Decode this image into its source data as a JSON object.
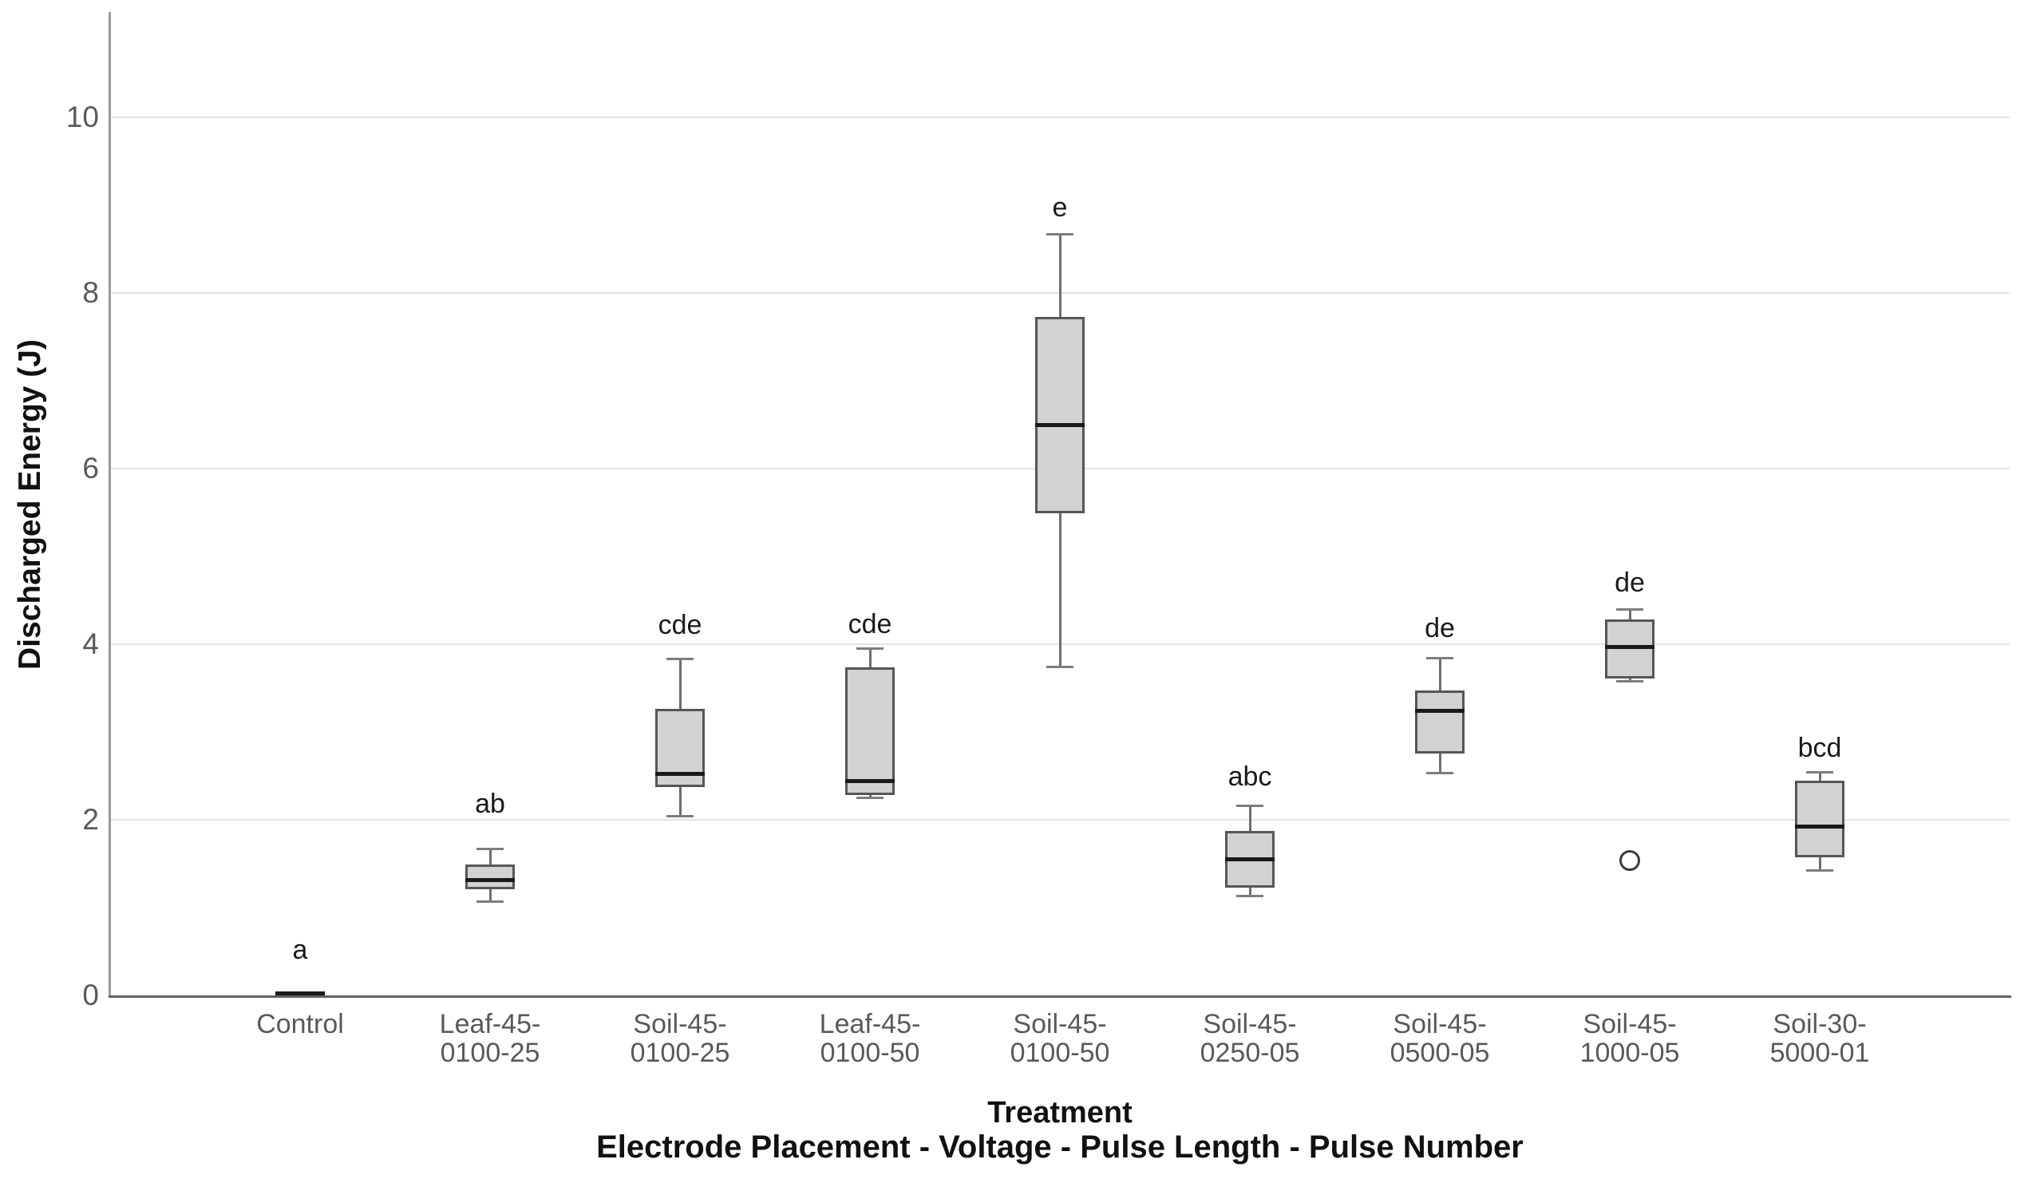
{
  "figure": {
    "ylabel": "Discharged Energy (J)",
    "xlabel_primary": "Treatment",
    "xlabel_secondary": "Electrode Placement - Voltage - Pulse Length - Pulse Number"
  },
  "chart_data": {
    "type": "box",
    "title": "",
    "ylabel": "Discharged Energy (J)",
    "xlabel": "Treatment: Electrode Placement - Voltage - Pulse Length - Pulse Number",
    "ylim": [
      0,
      11.2
    ],
    "yticks": [
      0,
      2,
      4,
      6,
      8,
      10
    ],
    "grid": "horizontal",
    "legend": "none",
    "categories": [
      "Control",
      "Leaf-45-0100-25",
      "Soil-45-0100-25",
      "Leaf-45-0100-50",
      "Soil-45-0100-50",
      "Soil-45-0250-05",
      "Soil-45-0500-05",
      "Soil-45-1000-05",
      "Soil-30-5000-01"
    ],
    "category_label_lines": [
      [
        "Control"
      ],
      [
        "Leaf-45-",
        "0100-25"
      ],
      [
        "Soil-45-",
        "0100-25"
      ],
      [
        "Leaf-45-",
        "0100-50"
      ],
      [
        "Soil-45-",
        "0100-50"
      ],
      [
        "Soil-45-",
        "0250-05"
      ],
      [
        "Soil-45-",
        "0500-05"
      ],
      [
        "Soil-45-",
        "1000-05"
      ],
      [
        "Soil-30-",
        "5000-01"
      ]
    ],
    "boxes": [
      {
        "category": "Control",
        "min": 0.02,
        "q1": 0.02,
        "median": 0.02,
        "q3": 0.02,
        "max": 0.02,
        "outliers": [],
        "sig_letter": "a",
        "sig_letter_y": 0.52
      },
      {
        "category": "Leaf-45-0100-25",
        "min": 1.07,
        "q1": 1.21,
        "median": 1.31,
        "q3": 1.49,
        "max": 1.67,
        "outliers": [],
        "sig_letter": "ab",
        "sig_letter_y": 2.18
      },
      {
        "category": "Soil-45-0100-25",
        "min": 2.04,
        "q1": 2.37,
        "median": 2.52,
        "q3": 3.26,
        "max": 3.83,
        "outliers": [],
        "sig_letter": "cde",
        "sig_letter_y": 4.22
      },
      {
        "category": "Leaf-45-0100-50",
        "min": 2.25,
        "q1": 2.28,
        "median": 2.44,
        "q3": 3.74,
        "max": 3.95,
        "outliers": [],
        "sig_letter": "cde",
        "sig_letter_y": 4.23
      },
      {
        "category": "Soil-45-0100-50",
        "min": 3.74,
        "q1": 5.49,
        "median": 6.5,
        "q3": 7.73,
        "max": 8.67,
        "outliers": [],
        "sig_letter": "e",
        "sig_letter_y": 8.97
      },
      {
        "category": "Soil-45-0250-05",
        "min": 1.13,
        "q1": 1.23,
        "median": 1.55,
        "q3": 1.87,
        "max": 2.16,
        "outliers": [],
        "sig_letter": "abc",
        "sig_letter_y": 2.49
      },
      {
        "category": "Soil-45-0500-05",
        "min": 2.53,
        "q1": 2.75,
        "median": 3.24,
        "q3": 3.47,
        "max": 3.84,
        "outliers": [],
        "sig_letter": "de",
        "sig_letter_y": 4.18
      },
      {
        "category": "Soil-45-1000-05",
        "min": 3.58,
        "q1": 3.61,
        "median": 3.97,
        "q3": 4.28,
        "max": 4.4,
        "outliers": [
          1.54
        ],
        "sig_letter": "de",
        "sig_letter_y": 4.7
      },
      {
        "category": "Soil-30-5000-01",
        "min": 1.42,
        "q1": 1.57,
        "median": 1.92,
        "q3": 2.45,
        "max": 2.54,
        "outliers": [],
        "sig_letter": "bcd",
        "sig_letter_y": 2.82
      }
    ]
  },
  "style": {
    "box_fill": "#d2d2d2",
    "box_border": "#565656",
    "median_color": "#1a1a1a",
    "whisker_color": "#6e6e6e",
    "cap_color": "#7d7d7d",
    "grid_color": "#e4e4e4",
    "y_axis_color": "#9a9a9a",
    "x_axis_color": "#616161",
    "tick_label_color": "#595959",
    "sig_letter_color": "#1a1a1a",
    "outlier_color": "#3a3a3a"
  }
}
